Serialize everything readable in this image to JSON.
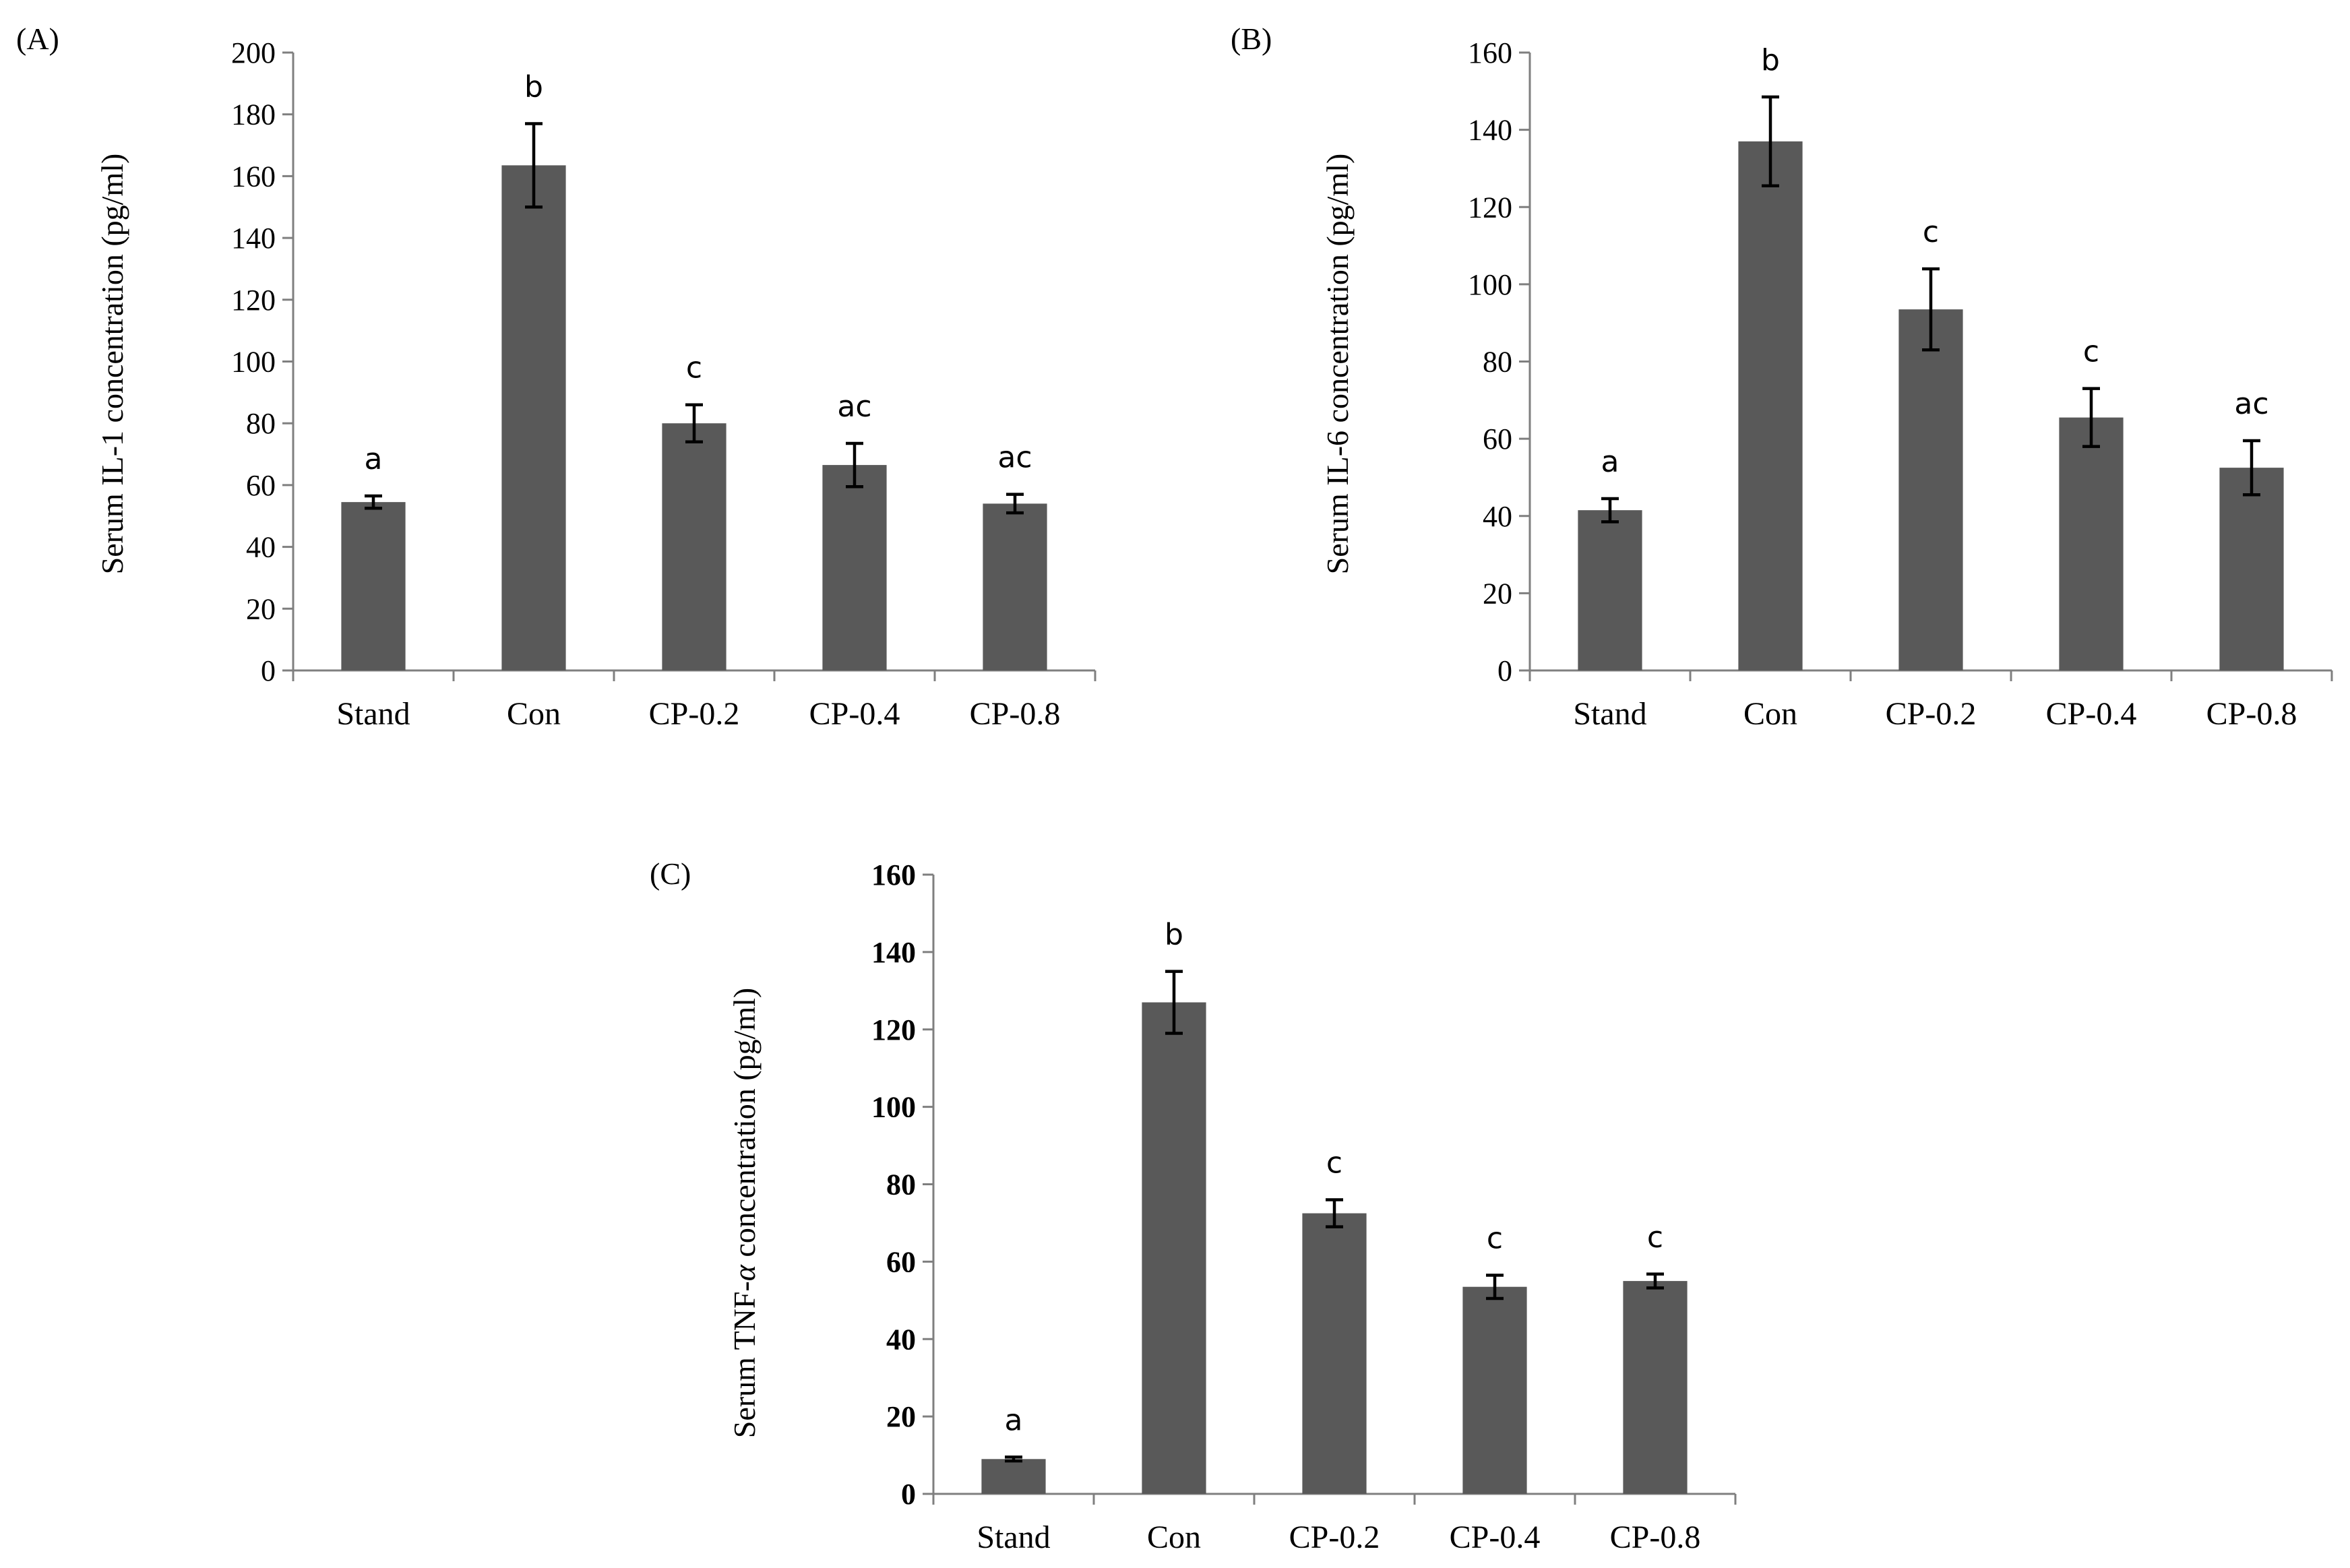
{
  "chart_data": [
    {
      "type": "bar",
      "panel_label": "(A)",
      "categories": [
        "Stand",
        "Con",
        "CP-0.2",
        "CP-0.4",
        "CP-0.8"
      ],
      "values": [
        54.5,
        163.5,
        80,
        66.5,
        54
      ],
      "errors": [
        2,
        13.5,
        6,
        7,
        3
      ],
      "letters": [
        "a",
        "b",
        "c",
        "ac",
        "ac"
      ],
      "ylabel": "Serum IL-1 concentration (pg/ml)",
      "ylim": [
        0,
        200
      ],
      "yticks": [
        "0",
        "20",
        "40",
        "60",
        "80",
        "100",
        "120",
        "140",
        "160",
        "180",
        "200"
      ],
      "bold_ticks": false
    },
    {
      "type": "bar",
      "panel_label": "(B)",
      "categories": [
        "Stand",
        "Con",
        "CP-0.2",
        "CP-0.4",
        "CP-0.8"
      ],
      "values": [
        41.5,
        137,
        93.5,
        65.5,
        52.5
      ],
      "errors": [
        3,
        11.5,
        10.5,
        7.5,
        7
      ],
      "letters": [
        "a",
        "b",
        "c",
        "c",
        "ac"
      ],
      "ylabel": "Serum IL-6 concentration (pg/ml)",
      "ylim": [
        0,
        160
      ],
      "yticks": [
        "0",
        "20",
        "40",
        "60",
        "80",
        "100",
        "120",
        "140",
        "160"
      ],
      "bold_ticks": false
    },
    {
      "type": "bar",
      "panel_label": "(C)",
      "categories": [
        "Stand",
        "Con",
        "CP-0.2",
        "CP-0.4",
        "CP-0.8"
      ],
      "values": [
        9,
        127,
        72.5,
        53.5,
        55
      ],
      "errors": [
        0.5,
        8,
        3.5,
        3,
        1.8
      ],
      "letters": [
        "a",
        "b",
        "c",
        "c",
        "c"
      ],
      "ylabel_prefix": "Serum TNF-",
      "ylabel_symbol": "α",
      "ylabel_suffix": " concentration (pg/ml)",
      "ylim": [
        0,
        160
      ],
      "yticks": [
        "0",
        "20",
        "40",
        "60",
        "80",
        "100",
        "120",
        "140",
        "160"
      ],
      "bold_ticks": true
    }
  ],
  "colors": {
    "bar": "#595959",
    "axis": "#7f7f7f",
    "error_bar": "#000000"
  }
}
